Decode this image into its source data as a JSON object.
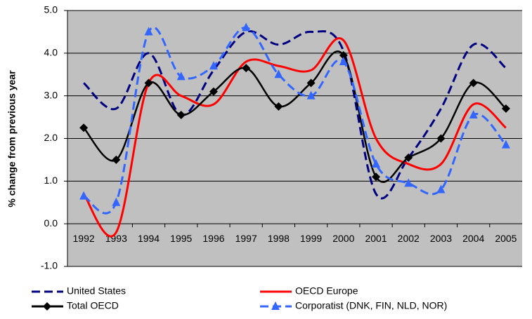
{
  "chart_data": {
    "type": "line",
    "y_label": "% change from previous year",
    "categories": [
      "1992",
      "1993",
      "1994",
      "1995",
      "1996",
      "1997",
      "1998",
      "1999",
      "2000",
      "2001",
      "2002",
      "2003",
      "2004",
      "2005"
    ],
    "series": [
      {
        "name": "United States",
        "color": "#000080",
        "dash": true,
        "marker": "none",
        "values": [
          3.3,
          2.7,
          4.0,
          2.55,
          3.6,
          4.5,
          4.2,
          4.5,
          4.05,
          0.7,
          1.55,
          2.7,
          4.2,
          3.65
        ]
      },
      {
        "name": "OECD Europe",
        "color": "#ff0000",
        "dash": false,
        "marker": "none",
        "values": [
          0.7,
          -0.2,
          3.3,
          3.0,
          2.8,
          3.8,
          3.7,
          3.6,
          4.3,
          2.0,
          1.4,
          1.4,
          2.8,
          2.25
        ]
      },
      {
        "name": "Total OECD",
        "color": "#000000",
        "dash": false,
        "marker": "diamond",
        "values": [
          2.25,
          1.5,
          3.3,
          2.55,
          3.1,
          3.65,
          2.75,
          3.3,
          3.95,
          1.1,
          1.55,
          2.0,
          3.3,
          2.7
        ]
      },
      {
        "name": "Corporatist (DNK, FIN, NLD, NOR)",
        "color": "#3366ff",
        "dash": true,
        "marker": "triangle",
        "values": [
          0.65,
          0.5,
          4.5,
          3.45,
          3.7,
          4.6,
          3.5,
          3.0,
          3.8,
          1.4,
          0.95,
          0.8,
          2.55,
          1.85
        ]
      }
    ],
    "ylim": [
      -1,
      5
    ],
    "yticks": [
      {
        "value": -1,
        "label": "-1.0"
      },
      {
        "value": 0,
        "label": "0.0"
      },
      {
        "value": 1,
        "label": "1.0"
      },
      {
        "value": 2,
        "label": "2.0"
      },
      {
        "value": 3,
        "label": "3.0"
      },
      {
        "value": 4,
        "label": "4.0"
      },
      {
        "value": 5,
        "label": "5.0"
      }
    ],
    "grid": true
  }
}
